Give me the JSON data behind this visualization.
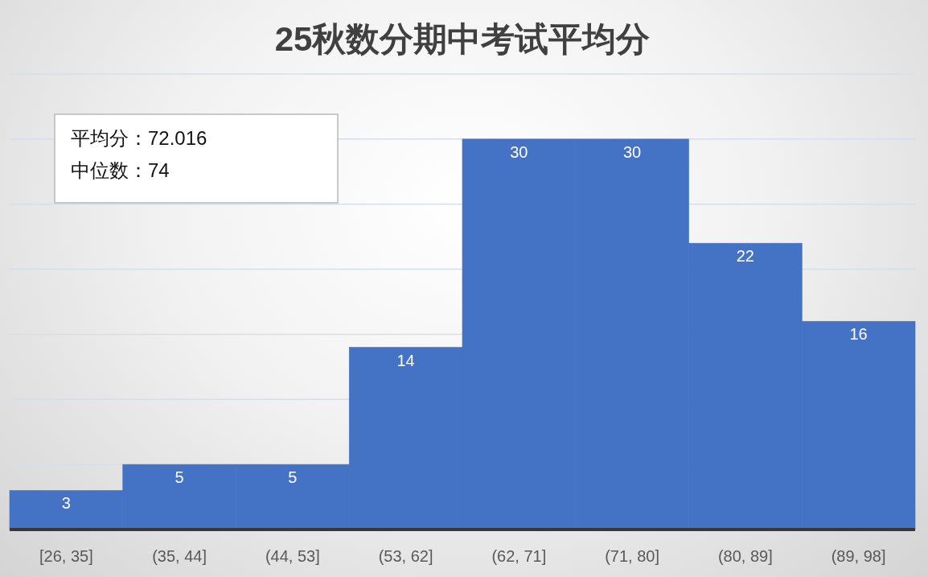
{
  "chart_data": {
    "type": "bar",
    "title": "25秋数分期中考试平均分",
    "categories": [
      "[26, 35]",
      "(35, 44]",
      "(44, 53]",
      "(53, 62]",
      "(62, 71]",
      "(71, 80]",
      "(80, 89]",
      "(89, 98]"
    ],
    "values": [
      3,
      5,
      5,
      14,
      30,
      30,
      22,
      16
    ],
    "color": "#4472c4",
    "ylim": [
      0,
      35
    ],
    "yticks": [
      {
        "value": 0,
        "label": null
      },
      {
        "value": 5,
        "label": null
      },
      {
        "value": 10,
        "label": null
      },
      {
        "value": 15,
        "label": null
      },
      {
        "value": 20,
        "label": null
      },
      {
        "value": 25,
        "label": null
      },
      {
        "value": 30,
        "label": null
      },
      {
        "value": 35,
        "label": null
      }
    ],
    "tick_labels": "x",
    "grid": "y",
    "data_labels": true,
    "annotations": [
      "平均分：72.016",
      "中位数：74"
    ]
  }
}
